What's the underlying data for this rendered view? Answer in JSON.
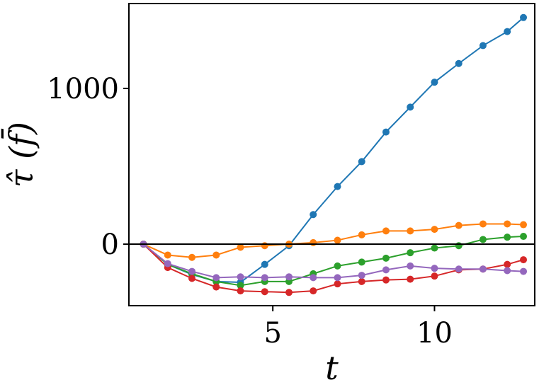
{
  "chart_data": {
    "type": "line",
    "xlabel": "t",
    "ylabel": "τ̂ (f̄)",
    "xlim": [
      0.55,
      13.1
    ],
    "ylim": [
      -395,
      1545
    ],
    "xticks": [
      5,
      10
    ],
    "xtick_labels": [
      "5",
      "10"
    ],
    "yticks": [
      0,
      1000
    ],
    "ytick_labels": [
      "0",
      "1000"
    ],
    "hline": 0,
    "grid": false,
    "x": [
      1.0,
      1.75,
      2.5,
      3.25,
      4.0,
      4.75,
      5.5,
      6.25,
      7.0,
      7.75,
      8.5,
      9.25,
      10.0,
      10.75,
      11.5,
      12.25,
      12.75
    ],
    "series": [
      {
        "color": "#1f77b4",
        "values": [
          0,
          -130,
          -195,
          -240,
          -245,
          -130,
          -10,
          190,
          370,
          530,
          720,
          880,
          1040,
          1160,
          1275,
          1365,
          1455
        ]
      },
      {
        "color": "#ff7f0e",
        "values": [
          0,
          -70,
          -85,
          -70,
          -20,
          -10,
          0,
          10,
          25,
          60,
          85,
          85,
          95,
          120,
          130,
          130,
          125
        ]
      },
      {
        "color": "#2ca02c",
        "values": [
          0,
          -130,
          -190,
          -240,
          -265,
          -240,
          -240,
          -190,
          -140,
          -115,
          -90,
          -55,
          -25,
          -10,
          30,
          45,
          50
        ]
      },
      {
        "color": "#d62728",
        "values": [
          0,
          -150,
          -220,
          -275,
          -300,
          -305,
          -310,
          -300,
          -255,
          -240,
          -230,
          -225,
          -205,
          -165,
          -160,
          -130,
          -100
        ]
      },
      {
        "color": "#9467bd",
        "values": [
          0,
          -125,
          -175,
          -215,
          -210,
          -215,
          -210,
          -215,
          -215,
          -200,
          -165,
          -140,
          -155,
          -160,
          -160,
          -170,
          -175
        ]
      }
    ]
  }
}
